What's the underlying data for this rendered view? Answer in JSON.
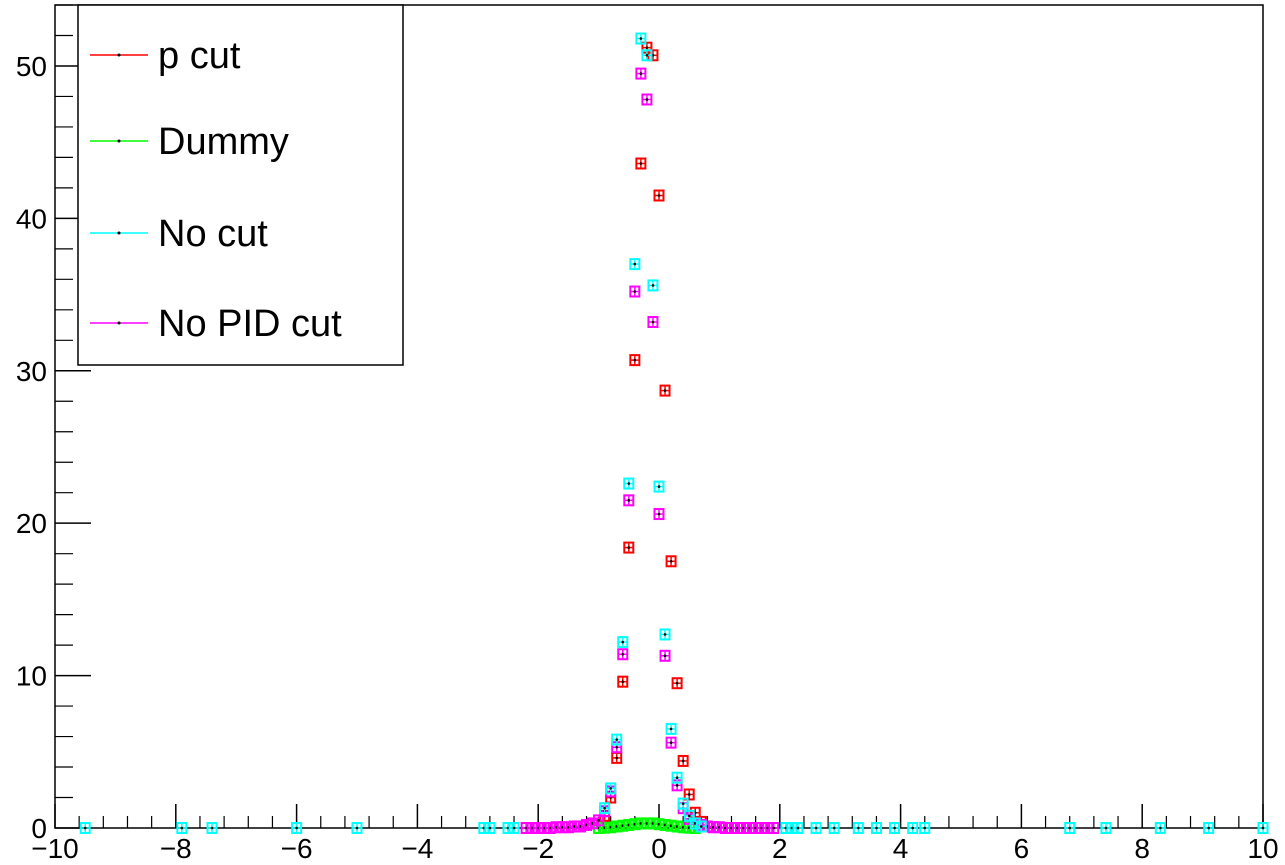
{
  "chart_data": {
    "type": "scatter",
    "title": "",
    "xlabel": "",
    "ylabel": "",
    "xlim": [
      -10,
      10
    ],
    "ylim": [
      0,
      54
    ],
    "grid": false,
    "legend_position": "top-left",
    "x_ticks": [
      -10,
      -8,
      -6,
      -4,
      -2,
      0,
      2,
      4,
      6,
      8,
      10
    ],
    "x_tick_labels": [
      "−10",
      "−8",
      "−6",
      "−4",
      "−2",
      "0",
      "2",
      "4",
      "6",
      "8",
      "10"
    ],
    "y_ticks": [
      0,
      10,
      20,
      30,
      40,
      50
    ],
    "y_tick_labels": [
      "0",
      "10",
      "20",
      "30",
      "40",
      "50"
    ],
    "series": [
      {
        "name": "p cut",
        "color": "#ff0000",
        "x": [
          -0.9,
          -0.8,
          -0.7,
          -0.6,
          -0.5,
          -0.4,
          -0.3,
          -0.2,
          -0.1,
          0.0,
          0.1,
          0.2,
          0.3,
          0.4,
          0.5,
          0.6,
          0.7
        ],
        "y": [
          0.8,
          2.0,
          4.6,
          9.6,
          18.4,
          30.7,
          43.6,
          51.2,
          50.7,
          41.5,
          28.7,
          17.5,
          9.5,
          4.4,
          2.2,
          1.0,
          0.4
        ]
      },
      {
        "name": "Dummy",
        "color": "#00ff00",
        "x": [
          -1.0,
          -0.9,
          -0.8,
          -0.7,
          -0.6,
          -0.5,
          -0.4,
          -0.3,
          -0.2,
          -0.1,
          0.0,
          0.1,
          0.2,
          0.3,
          0.4,
          0.5,
          0.6
        ],
        "y": [
          0.0,
          0.02,
          0.05,
          0.1,
          0.15,
          0.2,
          0.25,
          0.3,
          0.3,
          0.3,
          0.25,
          0.2,
          0.15,
          0.1,
          0.05,
          0.02,
          0.0
        ]
      },
      {
        "name": "No cut",
        "color": "#00ffff",
        "x": [
          -9.5,
          -7.9,
          -7.4,
          -6.0,
          -5.0,
          -2.9,
          -2.8,
          -2.5,
          -2.4,
          -0.9,
          -0.8,
          -0.7,
          -0.6,
          -0.5,
          -0.4,
          -0.3,
          -0.2,
          -0.1,
          0.0,
          0.1,
          0.2,
          0.3,
          0.4,
          0.5,
          0.6,
          0.7,
          2.1,
          2.2,
          2.3,
          2.6,
          2.9,
          3.3,
          3.6,
          3.9,
          4.2,
          4.4,
          6.8,
          7.4,
          8.3,
          9.1,
          10.0
        ],
        "y": [
          0,
          0,
          0,
          0,
          0,
          0,
          0,
          0,
          0,
          1.3,
          2.6,
          5.8,
          12.2,
          22.6,
          37.0,
          51.8,
          50.7,
          35.6,
          22.4,
          12.7,
          6.5,
          3.3,
          1.6,
          0.8,
          0.3,
          0.1,
          0,
          0,
          0,
          0,
          0,
          0,
          0,
          0,
          0,
          0,
          0,
          0,
          0,
          0,
          0
        ]
      },
      {
        "name": "No PID cut",
        "color": "#ff00ff",
        "x": [
          -2.2,
          -2.1,
          -2.0,
          -1.9,
          -1.8,
          -1.7,
          -1.6,
          -1.5,
          -1.4,
          -1.3,
          -1.2,
          -1.1,
          -1.0,
          -0.9,
          -0.8,
          -0.7,
          -0.6,
          -0.5,
          -0.4,
          -0.3,
          -0.2,
          -0.1,
          0.0,
          0.1,
          0.2,
          0.3,
          0.4,
          0.5,
          0.6,
          0.7,
          0.8,
          0.9,
          1.0,
          1.1,
          1.2,
          1.3,
          1.4,
          1.5,
          1.6,
          1.7,
          1.8,
          1.9
        ],
        "y": [
          0.0,
          0.0,
          0.0,
          0.0,
          0.0,
          0.05,
          0.05,
          0.05,
          0.1,
          0.1,
          0.2,
          0.3,
          0.5,
          1.1,
          2.4,
          5.3,
          11.4,
          21.5,
          35.2,
          49.5,
          47.8,
          33.2,
          20.6,
          11.3,
          5.6,
          2.8,
          1.3,
          0.6,
          0.3,
          0.2,
          0.1,
          0.05,
          0.05,
          0.0,
          0.0,
          0.0,
          0.0,
          0.0,
          0.0,
          0.0,
          0.0,
          0.0
        ]
      }
    ]
  }
}
